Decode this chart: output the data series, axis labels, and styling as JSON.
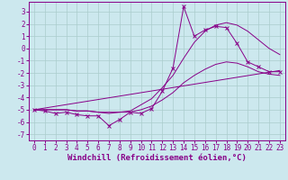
{
  "title": "",
  "xlabel": "Windchill (Refroidissement éolien,°C)",
  "background_color": "#cce8ee",
  "grid_color": "#aacccc",
  "line_color": "#880088",
  "xlim": [
    -0.5,
    23.5
  ],
  "ylim": [
    -7.5,
    3.8
  ],
  "xticks": [
    0,
    1,
    2,
    3,
    4,
    5,
    6,
    7,
    8,
    9,
    10,
    11,
    12,
    13,
    14,
    15,
    16,
    17,
    18,
    19,
    20,
    21,
    22,
    23
  ],
  "yticks": [
    -7,
    -6,
    -5,
    -4,
    -3,
    -2,
    -1,
    0,
    1,
    2,
    3
  ],
  "series1_x": [
    0,
    1,
    2,
    3,
    4,
    5,
    6,
    7,
    8,
    9,
    10,
    11,
    12,
    13,
    14,
    15,
    16,
    17,
    18,
    19,
    20,
    21,
    22,
    23
  ],
  "series1_y": [
    -5.0,
    -5.1,
    -5.3,
    -5.2,
    -5.4,
    -5.5,
    -5.5,
    -6.3,
    -5.8,
    -5.2,
    -5.3,
    -4.9,
    -3.5,
    -1.6,
    3.4,
    1.0,
    1.5,
    1.8,
    1.7,
    0.4,
    -1.1,
    -1.5,
    -1.9,
    -1.9
  ],
  "series2_x": [
    0,
    23
  ],
  "series2_y": [
    -5.0,
    -1.8
  ],
  "series3_x": [
    0,
    1,
    2,
    3,
    4,
    5,
    6,
    7,
    8,
    9,
    10,
    11,
    12,
    13,
    14,
    15,
    16,
    17,
    18,
    19,
    20,
    21,
    22,
    23
  ],
  "series3_y": [
    -5.0,
    -5.0,
    -5.0,
    -5.0,
    -5.1,
    -5.1,
    -5.2,
    -5.2,
    -5.2,
    -5.1,
    -4.6,
    -4.1,
    -3.2,
    -2.2,
    -0.8,
    0.5,
    1.4,
    1.9,
    2.1,
    1.9,
    1.4,
    0.7,
    0.0,
    -0.5
  ],
  "series4_x": [
    0,
    1,
    2,
    3,
    4,
    5,
    6,
    7,
    8,
    9,
    10,
    11,
    12,
    13,
    14,
    15,
    16,
    17,
    18,
    19,
    20,
    21,
    22,
    23
  ],
  "series4_y": [
    -5.0,
    -5.0,
    -5.0,
    -5.0,
    -5.1,
    -5.1,
    -5.2,
    -5.3,
    -5.2,
    -5.2,
    -5.0,
    -4.7,
    -4.2,
    -3.6,
    -2.8,
    -2.2,
    -1.7,
    -1.3,
    -1.1,
    -1.2,
    -1.5,
    -1.9,
    -2.1,
    -2.2
  ],
  "tick_fontsize": 5.5,
  "xlabel_fontsize": 6.5
}
